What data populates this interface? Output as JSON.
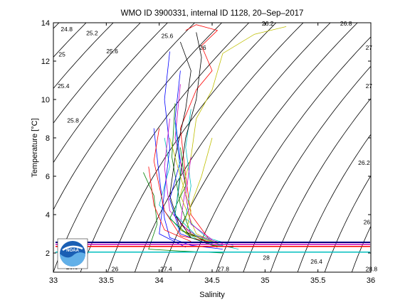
{
  "chart_data": {
    "type": "line",
    "title": "WMO ID 3900331, internal ID 1128, 20–Sep–2017",
    "xlabel": "Salinity",
    "ylabel": "Temperature [°C]",
    "xlim": [
      33,
      36
    ],
    "ylim": [
      1,
      14
    ],
    "xticks": [
      "33",
      "33.5",
      "34",
      "34.5",
      "35",
      "35.5",
      "36"
    ],
    "yticks": [
      "2",
      "4",
      "6",
      "8",
      "10",
      "12",
      "14"
    ],
    "grid": false,
    "density_contours": [
      24.8,
      25,
      25.2,
      25.4,
      25.6,
      25.8,
      26,
      26.2,
      26.4,
      26.6,
      26.8,
      27,
      27.2,
      27.4,
      27.6,
      27.8,
      28,
      28.2,
      28.4,
      28.6,
      28.8
    ],
    "density_labels": [
      {
        "text": "24.8",
        "s": 33.07,
        "t": 13.55
      },
      {
        "text": "25.2",
        "s": 33.31,
        "t": 13.35
      },
      {
        "text": "25.6",
        "s": 33.5,
        "t": 12.4
      },
      {
        "text": "26",
        "s": 33.55,
        "t": 1.05
      },
      {
        "text": "25",
        "s": 33.05,
        "t": 12.25
      },
      {
        "text": "25.4",
        "s": 33.04,
        "t": 10.6
      },
      {
        "text": "25.8",
        "s": 33.13,
        "t": 8.8
      },
      {
        "text": "25.6",
        "s": 34.02,
        "t": 13.2
      },
      {
        "text": "26",
        "s": 34.38,
        "t": 12.6
      },
      {
        "text": "26.2",
        "s": 34.97,
        "t": 13.85
      },
      {
        "text": "26.8",
        "s": 35.71,
        "t": 13.85
      },
      {
        "text": "27",
        "s": 35.95,
        "t": 12.6
      },
      {
        "text": "27",
        "s": 35.95,
        "t": 10.6
      },
      {
        "text": "26.2",
        "s": 35.88,
        "t": 6.6
      },
      {
        "text": "26",
        "s": 35.93,
        "t": 3.5
      },
      {
        "text": "26.6",
        "s": 33.12,
        "t": 1.15
      },
      {
        "text": "27.4",
        "s": 34.01,
        "t": 1.05
      },
      {
        "text": "27.8",
        "s": 34.55,
        "t": 1.05
      },
      {
        "text": "28",
        "s": 34.98,
        "t": 1.65
      },
      {
        "text": "26.4",
        "s": 35.43,
        "t": 1.45
      },
      {
        "text": "28.8",
        "s": 35.95,
        "t": 1.05
      }
    ],
    "series": [
      {
        "color": "#0000ff",
        "points": [
          [
            33.95,
            8.5
          ],
          [
            34.0,
            6.0
          ],
          [
            34.05,
            3.8
          ],
          [
            34.1,
            2.8
          ],
          [
            34.3,
            2.4
          ],
          [
            34.6,
            2.2
          ]
        ]
      },
      {
        "color": "#008000",
        "points": [
          [
            34.15,
            9.8
          ],
          [
            34.12,
            7.0
          ],
          [
            34.2,
            4.5
          ],
          [
            34.3,
            3.0
          ],
          [
            34.5,
            2.4
          ],
          [
            34.7,
            2.3
          ]
        ]
      },
      {
        "color": "#ff0000",
        "points": [
          [
            34.25,
            13.6
          ],
          [
            34.35,
            13.9
          ],
          [
            34.55,
            13.6
          ],
          [
            34.4,
            12.8
          ],
          [
            34.5,
            11.5
          ],
          [
            34.35,
            10.5
          ],
          [
            34.2,
            8.5
          ],
          [
            34.25,
            6.0
          ],
          [
            34.3,
            4.0
          ],
          [
            34.5,
            2.5
          ]
        ]
      },
      {
        "color": "#00bfbf",
        "points": [
          [
            34.05,
            8.0
          ],
          [
            34.1,
            6.5
          ],
          [
            34.0,
            4.5
          ],
          [
            34.2,
            3.2
          ],
          [
            34.4,
            2.6
          ],
          [
            34.75,
            2.2
          ]
        ]
      },
      {
        "color": "#bf00bf",
        "points": [
          [
            34.2,
            10.8
          ],
          [
            34.15,
            8.0
          ],
          [
            34.25,
            5.5
          ],
          [
            34.2,
            3.5
          ],
          [
            34.4,
            2.7
          ]
        ]
      },
      {
        "color": "#bfbf00",
        "points": [
          [
            35.2,
            13.8
          ],
          [
            34.9,
            13.4
          ],
          [
            34.6,
            12.4
          ],
          [
            34.5,
            10.5
          ],
          [
            34.35,
            9.0
          ],
          [
            34.3,
            7.0
          ],
          [
            34.2,
            5.0
          ],
          [
            34.35,
            3.0
          ],
          [
            34.55,
            2.5
          ]
        ]
      },
      {
        "color": "#000000",
        "points": [
          [
            34.2,
            13.0
          ],
          [
            34.3,
            11.5
          ],
          [
            34.25,
            9.5
          ],
          [
            34.15,
            7.0
          ],
          [
            34.1,
            5.0
          ],
          [
            34.2,
            3.2
          ],
          [
            34.45,
            2.6
          ]
        ]
      },
      {
        "color": "#0000ff",
        "points": [
          [
            34.1,
            12.5
          ],
          [
            34.05,
            10.0
          ],
          [
            34.1,
            7.5
          ],
          [
            34.05,
            5.2
          ],
          [
            34.0,
            3.0
          ],
          [
            34.25,
            2.3
          ]
        ]
      },
      {
        "color": "#008000",
        "points": [
          [
            33.85,
            6.2
          ],
          [
            33.95,
            5.0
          ],
          [
            33.98,
            3.5
          ],
          [
            33.9,
            2.2
          ],
          [
            34.2,
            2.1
          ],
          [
            34.6,
            2.0
          ]
        ]
      },
      {
        "color": "#ff0000",
        "points": [
          [
            34.0,
            8.5
          ],
          [
            33.95,
            6.8
          ],
          [
            34.05,
            4.2
          ],
          [
            34.2,
            2.9
          ],
          [
            34.55,
            2.5
          ]
        ]
      },
      {
        "color": "#00bfbf",
        "points": [
          [
            34.3,
            9.5
          ],
          [
            34.25,
            7.5
          ],
          [
            34.3,
            5.5
          ],
          [
            34.25,
            3.8
          ],
          [
            34.45,
            2.8
          ],
          [
            34.7,
            2.4
          ]
        ]
      },
      {
        "color": "#bf00bf",
        "points": [
          [
            34.1,
            9.0
          ],
          [
            34.05,
            6.5
          ],
          [
            34.1,
            4.2
          ],
          [
            34.3,
            3.0
          ],
          [
            34.6,
            2.5
          ]
        ]
      },
      {
        "color": "#bfbf00",
        "points": [
          [
            34.5,
            8.0
          ],
          [
            34.4,
            6.0
          ],
          [
            34.3,
            4.5
          ],
          [
            34.2,
            3.2
          ],
          [
            34.5,
            2.6
          ]
        ]
      },
      {
        "color": "#000000",
        "points": [
          [
            34.35,
            13.5
          ],
          [
            34.4,
            12.2
          ],
          [
            34.35,
            10.0
          ],
          [
            34.25,
            8.0
          ],
          [
            34.2,
            6.0
          ],
          [
            34.15,
            4.0
          ],
          [
            34.3,
            2.8
          ]
        ]
      },
      {
        "color": "#0000ff",
        "points": [
          [
            34.2,
            11.5
          ],
          [
            34.15,
            9.0
          ],
          [
            34.2,
            6.8
          ],
          [
            34.1,
            4.8
          ],
          [
            34.2,
            3.0
          ],
          [
            34.5,
            2.4
          ]
        ]
      },
      {
        "color": "#008000",
        "points": [
          [
            34.2,
            7.5
          ],
          [
            34.25,
            5.5
          ],
          [
            34.1,
            3.8
          ],
          [
            34.3,
            2.8
          ],
          [
            34.55,
            2.3
          ]
        ]
      },
      {
        "color": "#ff0000",
        "points": [
          [
            33.9,
            6.5
          ],
          [
            33.95,
            4.5
          ],
          [
            34.05,
            3.2
          ],
          [
            34.3,
            2.6
          ]
        ]
      },
      {
        "color": "#00bfbf",
        "points": [
          [
            34.15,
            8.8
          ],
          [
            34.2,
            6.2
          ],
          [
            34.15,
            4.0
          ],
          [
            34.35,
            2.9
          ],
          [
            34.6,
            2.4
          ]
        ]
      },
      {
        "color": "#bf00bf",
        "points": [
          [
            34.3,
            7.0
          ],
          [
            34.25,
            5.0
          ],
          [
            34.3,
            3.5
          ],
          [
            34.5,
            2.7
          ]
        ]
      },
      {
        "color": "#bfbf00",
        "points": [
          [
            34.1,
            8.0
          ],
          [
            34.2,
            6.0
          ],
          [
            34.3,
            4.2
          ],
          [
            34.25,
            3.0
          ],
          [
            34.55,
            2.5
          ]
        ]
      }
    ]
  }
}
